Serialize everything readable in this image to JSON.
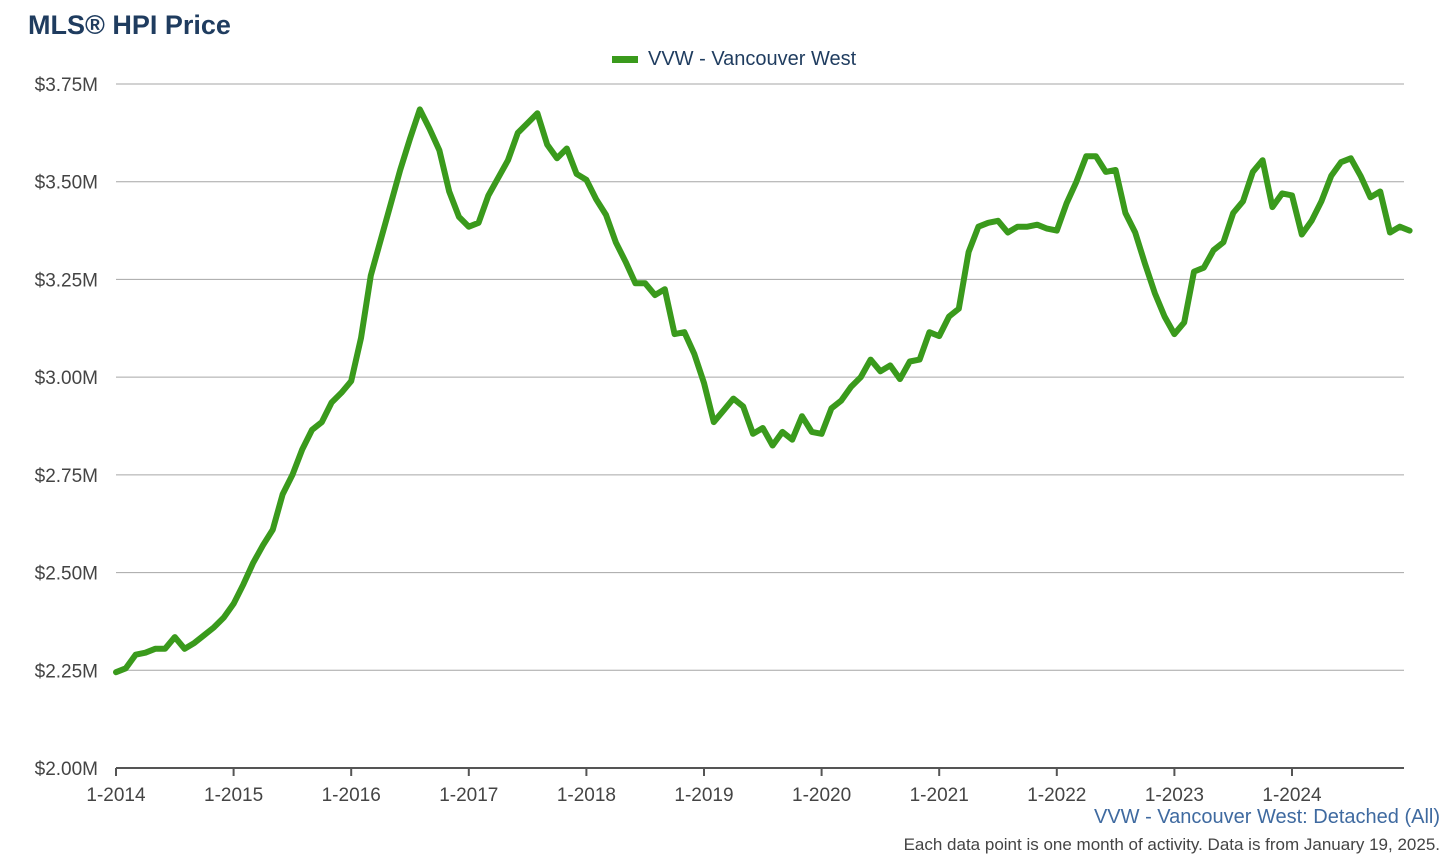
{
  "chart_data": {
    "type": "line",
    "title": "MLS® HPI Price",
    "xlabel": "",
    "ylabel": "",
    "x_tick_labels": [
      "1-2014",
      "1-2015",
      "1-2016",
      "1-2017",
      "1-2018",
      "1-2019",
      "1-2020",
      "1-2021",
      "1-2022",
      "1-2023",
      "1-2024"
    ],
    "y_tick_labels": [
      "$2.00M",
      "$2.25M",
      "$2.50M",
      "$2.75M",
      "$3.00M",
      "$3.25M",
      "$3.50M",
      "$3.75M"
    ],
    "y_tick_values": [
      2.0,
      2.25,
      2.5,
      2.75,
      3.0,
      3.25,
      3.5,
      3.75
    ],
    "ylim": [
      2.0,
      3.75
    ],
    "x_start": "2014-01",
    "x_end_month_index": 131,
    "grid": "horizontal",
    "legend_position": "top-center",
    "series": [
      {
        "name": "VVW - Vancouver West",
        "color": "#3a9a1c",
        "values": [
          2.245,
          2.255,
          2.29,
          2.295,
          2.305,
          2.305,
          2.335,
          2.305,
          2.32,
          2.34,
          2.36,
          2.385,
          2.42,
          2.47,
          2.525,
          2.57,
          2.61,
          2.7,
          2.75,
          2.815,
          2.865,
          2.885,
          2.935,
          2.96,
          2.99,
          3.1,
          3.26,
          3.35,
          3.44,
          3.53,
          3.61,
          3.685,
          3.635,
          3.58,
          3.475,
          3.41,
          3.385,
          3.395,
          3.465,
          3.51,
          3.555,
          3.625,
          3.65,
          3.675,
          3.595,
          3.56,
          3.585,
          3.52,
          3.505,
          3.455,
          3.415,
          3.345,
          3.295,
          3.24,
          3.24,
          3.21,
          3.225,
          3.11,
          3.115,
          3.06,
          2.985,
          2.885,
          2.915,
          2.945,
          2.925,
          2.855,
          2.87,
          2.825,
          2.86,
          2.84,
          2.9,
          2.86,
          2.855,
          2.92,
          2.94,
          2.975,
          3.0,
          3.045,
          3.015,
          3.03,
          2.995,
          3.04,
          3.045,
          3.115,
          3.105,
          3.155,
          3.175,
          3.32,
          3.385,
          3.395,
          3.4,
          3.37,
          3.385,
          3.385,
          3.39,
          3.38,
          3.375,
          3.445,
          3.5,
          3.565,
          3.565,
          3.525,
          3.53,
          3.42,
          3.37,
          3.29,
          3.215,
          3.155,
          3.11,
          3.14,
          3.27,
          3.28,
          3.325,
          3.345,
          3.42,
          3.45,
          3.525,
          3.555,
          3.435,
          3.47,
          3.465,
          3.365,
          3.4,
          3.45,
          3.515,
          3.55,
          3.56,
          3.515,
          3.46,
          3.475,
          3.37,
          3.385,
          3.375
        ]
      }
    ],
    "caption": "VVW - Vancouver West: Detached (All)",
    "footnote": "Each data point is one month of activity. Data is from January 19, 2025."
  },
  "colors": {
    "title": "#1f3c5f",
    "series": "#3a9a1c",
    "grid": "#a6a6a6",
    "caption": "#3f6aa0"
  }
}
